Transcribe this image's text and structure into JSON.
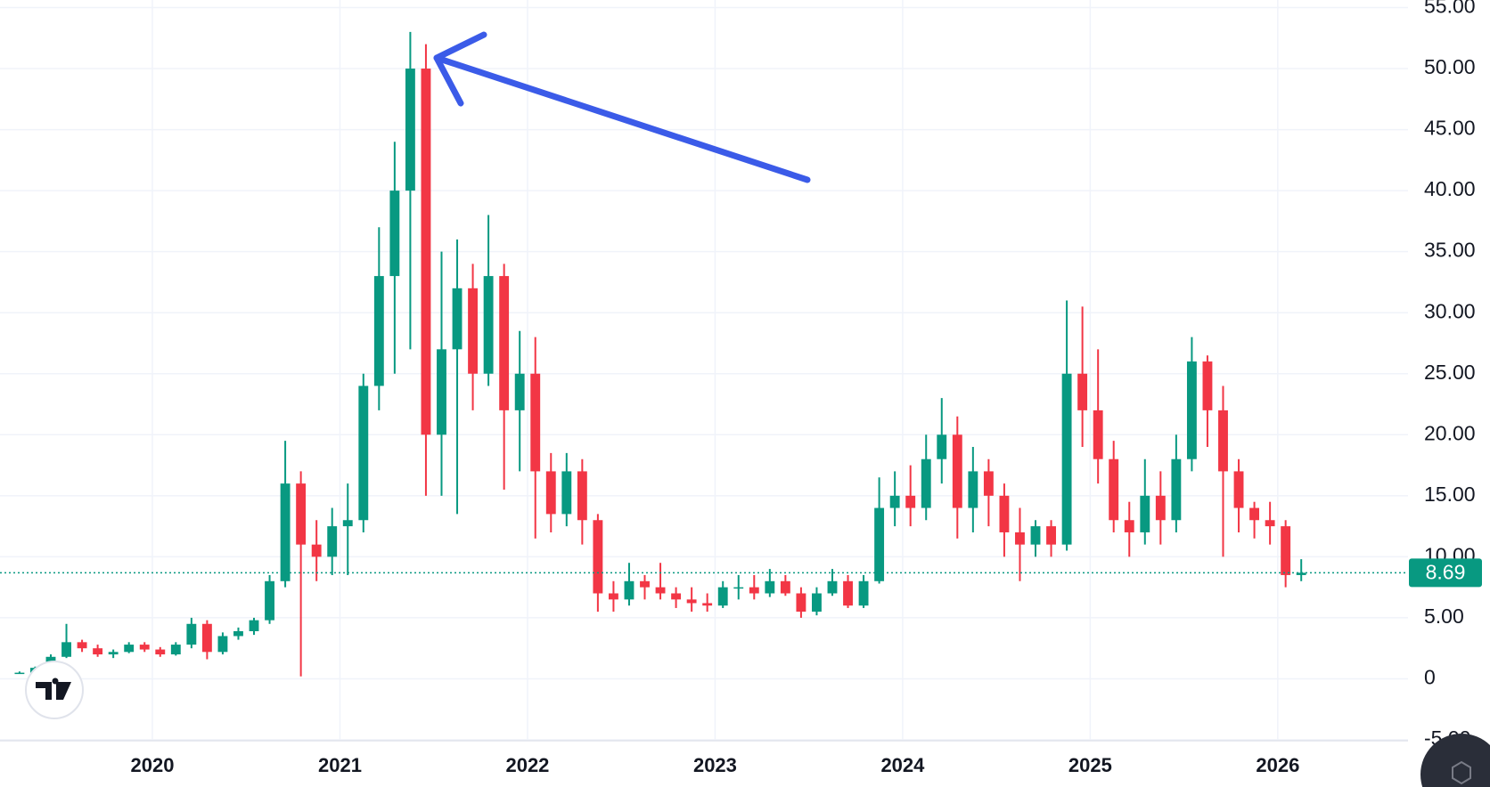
{
  "chart_data": {
    "type": "candlestick",
    "categories": [
      null,
      null,
      null,
      null,
      null,
      null,
      null,
      null,
      null,
      "2020",
      null,
      null,
      null,
      null,
      null,
      null,
      null,
      null,
      null,
      null,
      null,
      "2021",
      null,
      null,
      null,
      null,
      null,
      null,
      null,
      null,
      null,
      null,
      null,
      "2022",
      null,
      null,
      null,
      null,
      null,
      null,
      null,
      null,
      null,
      null,
      null,
      "2023",
      null,
      null,
      null,
      null,
      null,
      null,
      null,
      null,
      null,
      null,
      null,
      "2024",
      null,
      null,
      null,
      null,
      null,
      null,
      null,
      null,
      null,
      null,
      null,
      "2025",
      null,
      null,
      null,
      null,
      null,
      null,
      null,
      null,
      null,
      null,
      null,
      "2026",
      null
    ],
    "open": [
      0.5,
      0.5,
      0.9,
      1.8,
      3.0,
      2.5,
      2.0,
      2.2,
      2.8,
      2.4,
      2.0,
      2.8,
      4.5,
      2.2,
      3.5,
      3.9,
      4.8,
      8.0,
      16,
      11,
      10,
      12.5,
      13,
      24,
      33,
      40,
      50,
      20,
      27,
      32,
      25,
      33,
      22,
      25,
      17,
      13.5,
      17,
      13,
      7,
      6.5,
      8,
      7.5,
      7,
      6.5,
      6.2,
      6,
      7.5,
      7.5,
      7,
      8,
      7,
      5.5,
      7,
      8,
      6,
      8,
      14,
      15,
      14,
      18,
      20,
      14,
      17,
      15,
      12,
      11,
      12.5,
      11,
      25,
      22,
      18,
      13,
      12,
      15,
      13,
      18,
      26,
      22,
      17,
      14,
      13,
      12.5,
      8.5
    ],
    "high": [
      0.6,
      1.0,
      2.0,
      4.5,
      3.2,
      2.8,
      2.4,
      3.0,
      3.0,
      2.6,
      3.0,
      5.0,
      4.8,
      3.8,
      4.2,
      5.0,
      8.5,
      19.5,
      17,
      13,
      14,
      16,
      25,
      37,
      44,
      53,
      52,
      35,
      36,
      34,
      38,
      34,
      28.5,
      28,
      18.5,
      18.5,
      18,
      13.5,
      8,
      9.5,
      8.5,
      9.5,
      7.5,
      7.5,
      7,
      8,
      8.5,
      8.5,
      9,
      8.5,
      7.5,
      7.5,
      9,
      8.5,
      8.5,
      16.5,
      17,
      17.5,
      20,
      23,
      21.5,
      19,
      18,
      16,
      14,
      13,
      13,
      31,
      30.5,
      27,
      19.5,
      14.5,
      18,
      17,
      20,
      28,
      26.5,
      24,
      18,
      14.5,
      14.5,
      13,
      9.8
    ],
    "low": [
      0.4,
      0.4,
      0.8,
      1.7,
      2.2,
      1.8,
      1.7,
      2.1,
      2.2,
      1.8,
      1.9,
      2.5,
      1.6,
      2.0,
      3.2,
      3.6,
      4.5,
      7.5,
      0.2,
      8,
      8.5,
      8.5,
      12,
      22,
      25,
      27,
      15,
      15,
      13.5,
      22,
      24,
      15.5,
      17,
      11.5,
      12,
      12.5,
      11,
      5.5,
      5.5,
      6,
      6.5,
      6.5,
      5.8,
      5.5,
      5.5,
      5.8,
      6.5,
      6.5,
      6.7,
      6.8,
      5,
      5.2,
      6.8,
      5.8,
      5.8,
      7.8,
      12.5,
      12.5,
      13,
      16,
      11.5,
      12,
      12.5,
      10,
      8,
      10,
      10,
      10.5,
      19,
      16,
      12,
      10,
      11,
      11,
      12,
      17,
      19,
      10,
      12,
      11.5,
      11,
      7.5,
      8
    ],
    "close": [
      0.5,
      0.9,
      1.8,
      3.0,
      2.5,
      2.0,
      2.2,
      2.8,
      2.4,
      2.0,
      2.8,
      4.5,
      2.2,
      3.5,
      3.9,
      4.8,
      8.0,
      16,
      11,
      10,
      12.5,
      13,
      24,
      33,
      40,
      50,
      20,
      27,
      32,
      25,
      33,
      22,
      25,
      17,
      13.5,
      17,
      13,
      7,
      6.5,
      8,
      7.5,
      7,
      6.5,
      6.2,
      6,
      7.5,
      7.5,
      7,
      8,
      7,
      5.5,
      7,
      8,
      6,
      8,
      14,
      15,
      14,
      18,
      20,
      14,
      17,
      15,
      12,
      11,
      12.5,
      11,
      25,
      22,
      18,
      13,
      12,
      15,
      13,
      18,
      26,
      22,
      17,
      14,
      13,
      12.5,
      8.5,
      8.69
    ],
    "up_color": "#089981",
    "down_color": "#f23645",
    "last_price": 8.69,
    "ylim": [
      -5,
      55
    ],
    "yticks": [
      {
        "value": -5,
        "label": "-5.00"
      },
      0,
      {
        "value": 5,
        "label": "5.00"
      },
      {
        "value": 10,
        "label": "10.00"
      },
      {
        "value": 15,
        "label": "15.00"
      },
      {
        "value": 20,
        "label": "20.00"
      },
      {
        "value": 25,
        "label": "25.00"
      },
      {
        "value": 30,
        "label": "30.00"
      },
      {
        "value": 35,
        "label": "35.00"
      },
      {
        "value": 40,
        "label": "40.00"
      },
      {
        "value": 45,
        "label": "45.00"
      },
      {
        "value": 50,
        "label": "50.00"
      },
      {
        "value": 55,
        "label": "55.00"
      }
    ],
    "grid": true
  }
}
